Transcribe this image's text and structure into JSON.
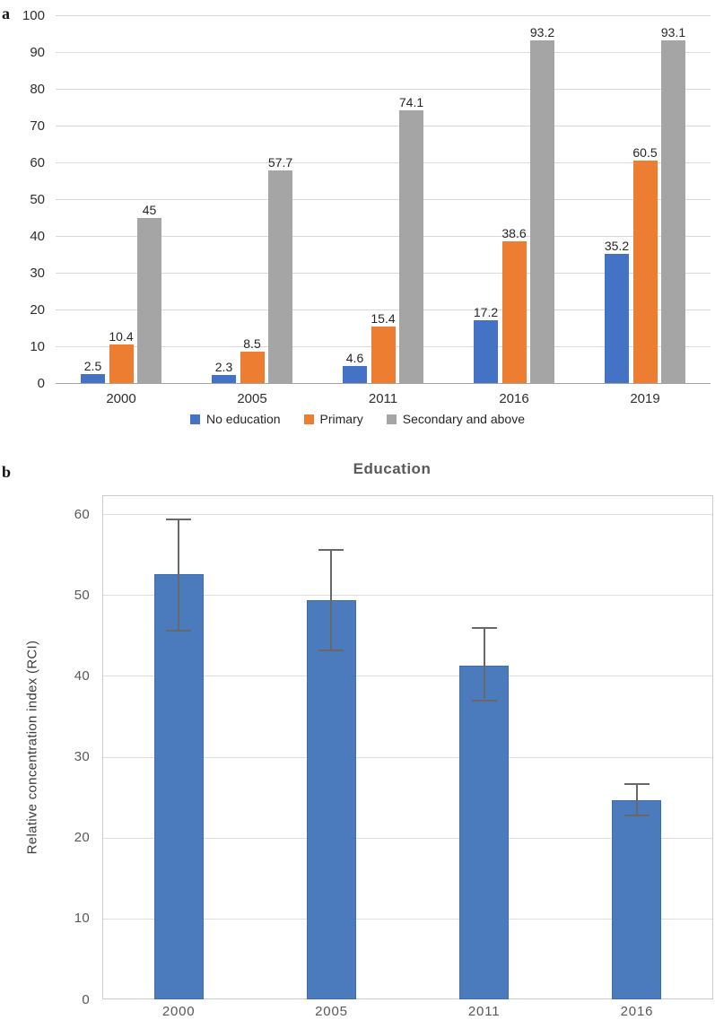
{
  "figure": {
    "panel_a_label": "a",
    "panel_b_label": "b"
  },
  "chart_data": [
    {
      "type": "bar",
      "panel": "a",
      "categories": [
        "2000",
        "2005",
        "2011",
        "2016",
        "2019"
      ],
      "series": [
        {
          "name": "No education",
          "color": "#4472c4",
          "values": [
            2.5,
            2.3,
            4.6,
            17.2,
            35.2
          ],
          "labels": [
            "2.5",
            "2.3",
            "4.6",
            "17.2",
            "35.2"
          ]
        },
        {
          "name": "Primary",
          "color": "#ed7d31",
          "values": [
            10.4,
            8.5,
            15.4,
            38.6,
            60.5
          ],
          "labels": [
            "10.4",
            "8.5",
            "15.4",
            "38.6",
            "60.5"
          ]
        },
        {
          "name": "Secondary and above",
          "color": "#a5a5a5",
          "values": [
            45,
            57.7,
            74.1,
            93.2,
            93.1
          ],
          "labels": [
            "45",
            "57.7",
            "74.1",
            "93.2",
            "93.1"
          ]
        }
      ],
      "ylim": [
        0,
        100
      ],
      "ytick_step": 10,
      "grid": true,
      "legend_position": "bottom",
      "data_labels": true
    },
    {
      "type": "bar",
      "panel": "b",
      "title": "Education",
      "ylabel": "Relative concentration index (RCI)",
      "categories": [
        "2000",
        "2005",
        "2011",
        "2016"
      ],
      "values": [
        52.6,
        49.4,
        41.3,
        24.6
      ],
      "error_low": [
        45.7,
        43.3,
        37.1,
        22.8
      ],
      "error_high": [
        59.5,
        55.7,
        46.0,
        26.7
      ],
      "bar_color": "#4b7abd",
      "error_color": "#66686b",
      "ylim": [
        0,
        60
      ],
      "ytick_step": 10,
      "grid": true,
      "legend_position": "none",
      "data_labels": false
    }
  ]
}
